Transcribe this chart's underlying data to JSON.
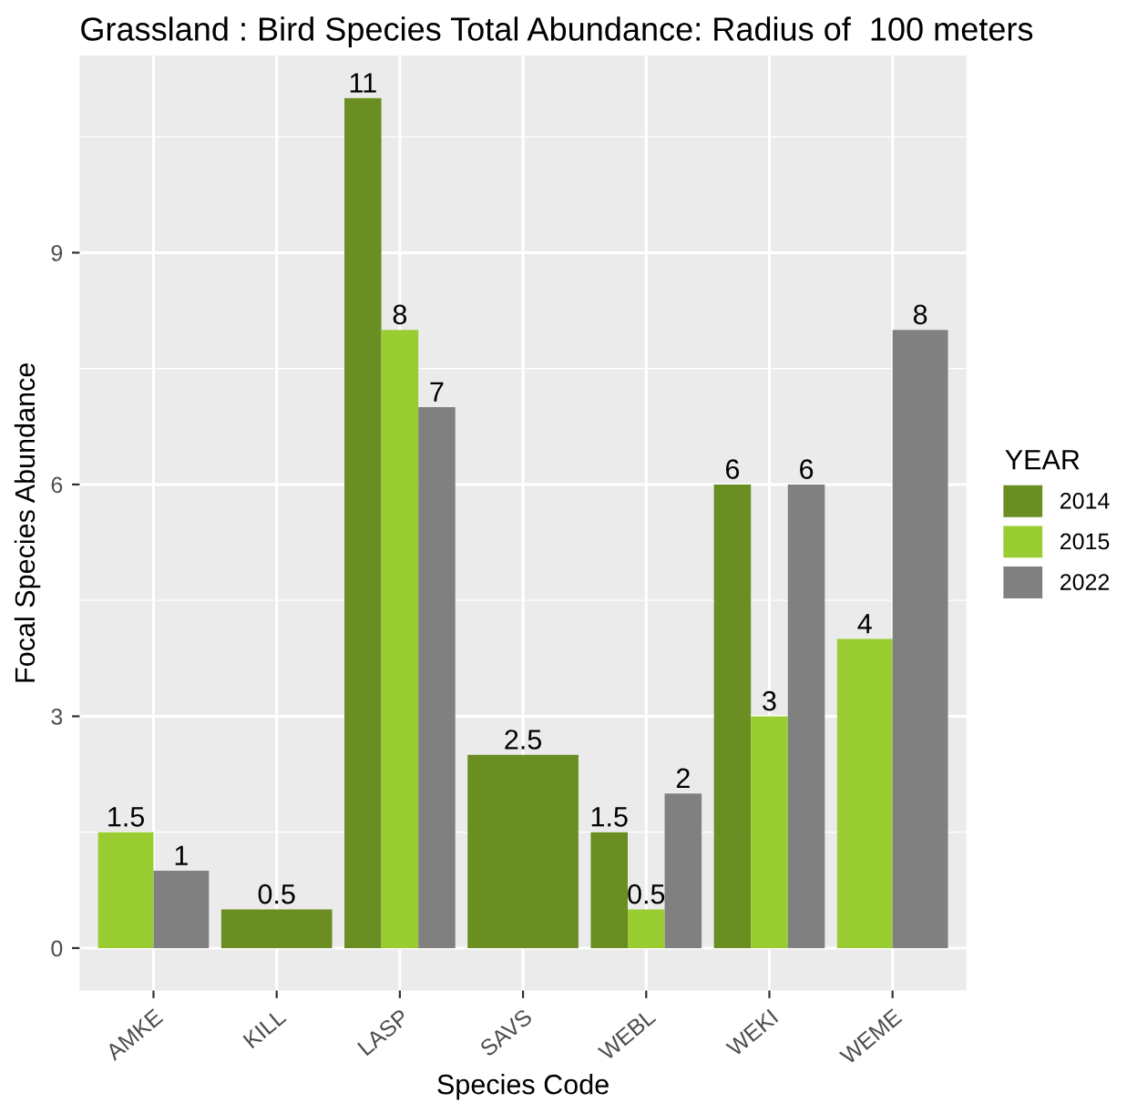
{
  "chart_data": {
    "type": "bar",
    "title": "Grassland : Bird Species Total Abundance: Radius of  100 meters",
    "xlabel": "Species Code",
    "ylabel": "Focal Species Abundance",
    "legend_title": "YEAR",
    "categories": [
      "AMKE",
      "KILL",
      "LASP",
      "SAVS",
      "WEBL",
      "WEKI",
      "WEME"
    ],
    "series": [
      {
        "name": "2014",
        "color": "#6b8e23",
        "values": [
          null,
          0.5,
          11,
          2.5,
          1.5,
          6,
          null
        ]
      },
      {
        "name": "2015",
        "color": "#9acd32",
        "values": [
          1.5,
          null,
          8,
          null,
          0.5,
          3,
          4
        ]
      },
      {
        "name": "2022",
        "color": "#808080",
        "values": [
          1,
          null,
          7,
          null,
          2,
          6,
          8
        ]
      }
    ],
    "ylim": [
      -0.55,
      11.55
    ],
    "yticks": [
      0,
      3,
      6,
      9
    ],
    "grid": true,
    "legend": "right",
    "data_labels": true
  }
}
